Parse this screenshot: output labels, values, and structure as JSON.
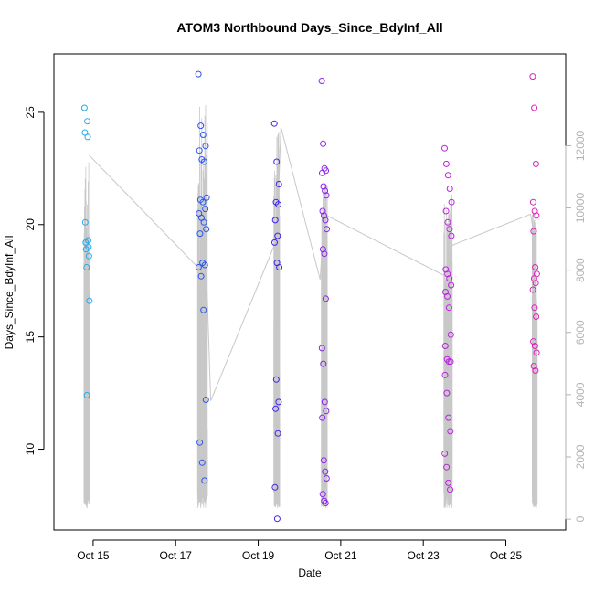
{
  "chart_data": {
    "type": "scatter",
    "title": "ATOM3 Northbound Days_Since_BdyInf_All",
    "xlabel": "Date",
    "ylabel": "Days_Since_BdyInf_All",
    "x_ticks": [
      "Oct 15",
      "Oct 17",
      "Oct 19",
      "Oct 21",
      "Oct 23",
      "Oct 25"
    ],
    "x_tick_values": [
      15,
      17,
      19,
      21,
      23,
      25
    ],
    "xlim": [
      14.05,
      26.45
    ],
    "ylim": [
      6.4,
      27.6
    ],
    "y_ticks": [
      10,
      15,
      20,
      25
    ],
    "y2_ticks": [
      0,
      2000,
      4000,
      6000,
      8000,
      10000,
      12000
    ],
    "y2lim": [
      -350,
      14950
    ],
    "grid": false,
    "legend": "none",
    "colors": {
      "point_gradient": [
        "#22aaee",
        "#2222ee",
        "#8a2be2",
        "#ee22cc"
      ],
      "secondary_line": "#c8c8c8",
      "axis": "#000000",
      "right_axis": "#b3b3b3"
    },
    "clusters": [
      {
        "center": 14.85,
        "spread": 0.12,
        "color": "#22aaee",
        "y": [
          25.2,
          24.6,
          24.1,
          23.9,
          20.1,
          19.3,
          19.2,
          19.0,
          18.9,
          18.6,
          18.1,
          16.6,
          12.4
        ],
        "secondary_top": 11500
      },
      {
        "center": 17.65,
        "spread": 0.2,
        "color": "#2c55ee",
        "y": [
          26.7,
          24.4,
          24.0,
          23.5,
          23.3,
          22.9,
          22.8,
          21.2,
          21.1,
          21.0,
          20.7,
          20.5,
          20.3,
          20.1,
          19.8,
          19.6,
          18.3,
          18.2,
          18.1,
          17.7,
          16.2,
          12.2,
          10.3,
          9.4,
          8.6
        ],
        "secondary_top": 13500
      },
      {
        "center": 19.45,
        "spread": 0.12,
        "color": "#3a22ee",
        "y": [
          24.5,
          22.8,
          21.8,
          21.0,
          20.9,
          20.2,
          19.5,
          19.2,
          18.3,
          18.1,
          13.1,
          12.1,
          11.8,
          10.7,
          8.3,
          6.9
        ],
        "secondary_top": 12500
      },
      {
        "center": 20.6,
        "spread": 0.12,
        "color": "#8a22ee",
        "y": [
          26.4,
          23.6,
          22.5,
          22.4,
          22.3,
          21.7,
          21.5,
          21.3,
          20.6,
          20.4,
          20.2,
          19.8,
          18.9,
          18.7,
          16.7,
          14.5,
          13.8,
          12.1,
          11.7,
          11.4,
          9.5,
          9.0,
          8.7,
          8.0,
          7.7,
          7.6
        ],
        "secondary_top": 11000
      },
      {
        "center": 23.6,
        "spread": 0.17,
        "color": "#bb22dd",
        "y": [
          23.4,
          22.7,
          22.2,
          21.6,
          21.0,
          20.6,
          20.1,
          19.8,
          19.5,
          18.0,
          17.8,
          17.6,
          17.3,
          17.0,
          16.8,
          16.3,
          15.1,
          14.6,
          14.0,
          13.9,
          13.9,
          13.3,
          12.5,
          11.4,
          10.8,
          9.8,
          9.2,
          8.5,
          8.2
        ],
        "secondary_top": 10500
      },
      {
        "center": 25.7,
        "spread": 0.1,
        "color": "#dd22bb",
        "y": [
          26.6,
          25.2,
          22.7,
          21.0,
          20.6,
          20.4,
          19.7,
          18.1,
          17.8,
          17.6,
          17.4,
          17.1,
          16.3,
          15.9,
          14.8,
          14.6,
          14.3,
          13.7,
          13.5
        ],
        "secondary_top": 10000
      }
    ],
    "secondary_line": {
      "name": "",
      "x": [
        14.9,
        17.75,
        17.85,
        19.45,
        19.55,
        20.5,
        20.6,
        23.55,
        23.7,
        25.6,
        25.7
      ],
      "y": [
        11700,
        7800,
        3800,
        9000,
        12600,
        7700,
        9800,
        7800,
        8800,
        9800,
        9000
      ]
    }
  }
}
